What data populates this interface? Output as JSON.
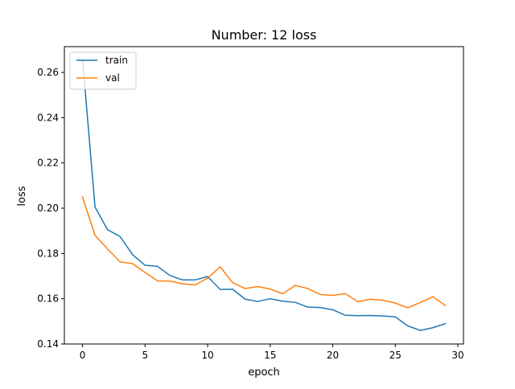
{
  "chart_data": {
    "type": "line",
    "title": "Number: 12 loss",
    "xlabel": "epoch",
    "ylabel": "loss",
    "xlim": [
      -1.45,
      30.45
    ],
    "ylim": [
      0.14,
      0.2714
    ],
    "xticks": [
      0,
      5,
      10,
      15,
      20,
      25,
      30
    ],
    "yticks": [
      0.14,
      0.16,
      0.18,
      0.2,
      0.22,
      0.24,
      0.26
    ],
    "ytick_labels": [
      "0.14",
      "0.16",
      "0.18",
      "0.20",
      "0.22",
      "0.24",
      "0.26"
    ],
    "legend_position": "top-left",
    "grid": false,
    "x": [
      0,
      1,
      2,
      3,
      4,
      5,
      6,
      7,
      8,
      9,
      10,
      11,
      12,
      13,
      14,
      15,
      16,
      17,
      18,
      19,
      20,
      21,
      22,
      23,
      24,
      25,
      26,
      27,
      28,
      29
    ],
    "series": [
      {
        "name": "train",
        "color": "#1f77b4",
        "values": [
          0.266,
          0.2005,
          0.1905,
          0.1875,
          0.1795,
          0.1748,
          0.1743,
          0.1702,
          0.1683,
          0.1683,
          0.1698,
          0.1641,
          0.1642,
          0.1598,
          0.1588,
          0.16,
          0.1589,
          0.1584,
          0.1563,
          0.1561,
          0.1551,
          0.1527,
          0.1525,
          0.1526,
          0.1524,
          0.152,
          0.148,
          0.146,
          0.1472,
          0.149
        ]
      },
      {
        "name": "val",
        "color": "#ff7f0e",
        "values": [
          0.205,
          0.188,
          0.182,
          0.1763,
          0.1755,
          0.1716,
          0.1679,
          0.1678,
          0.1666,
          0.1661,
          0.1691,
          0.1741,
          0.1671,
          0.1645,
          0.1654,
          0.1643,
          0.1622,
          0.1659,
          0.1645,
          0.1619,
          0.1615,
          0.1623,
          0.1587,
          0.1598,
          0.1593,
          0.1581,
          0.156,
          0.1583,
          0.1609,
          0.157
        ]
      }
    ]
  }
}
